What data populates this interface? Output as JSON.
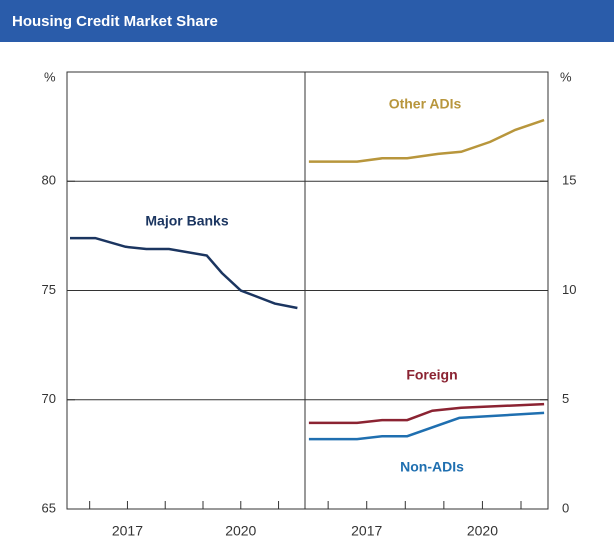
{
  "title": "Housing Credit Market Share",
  "chart_data": [
    {
      "type": "line",
      "y_unit": "%",
      "xlim": [
        2015.4,
        2021.7
      ],
      "xticks": [
        2016,
        2017,
        2018,
        2019,
        2020,
        2021
      ],
      "xtick_labels": [
        2017,
        2020
      ],
      "ylim": [
        65,
        85
      ],
      "yticks": [
        65,
        70,
        75,
        80
      ],
      "grid": true,
      "series": [
        {
          "name": "Major Banks",
          "color": "#1b3560",
          "x": [
            2015.48,
            2016.15,
            2016.95,
            2017.5,
            2018.1,
            2019.1,
            2019.5,
            2020,
            2020.9,
            2021.5
          ],
          "values": [
            77.4,
            77.4,
            77.0,
            76.9,
            76.9,
            76.6,
            75.8,
            75.0,
            74.4,
            74.2
          ]
        }
      ]
    },
    {
      "type": "line",
      "y_unit": "%",
      "xlim": [
        2015.4,
        2021.7
      ],
      "xticks": [
        2016,
        2017,
        2018,
        2019,
        2020,
        2021
      ],
      "xtick_labels": [
        2017,
        2020
      ],
      "ylim": [
        0,
        20
      ],
      "yticks": [
        0,
        5,
        10,
        15
      ],
      "grid": true,
      "series": [
        {
          "name": "Other ADIs",
          "color": "#b8963c",
          "x": [
            2015.5,
            2016.75,
            2017.4,
            2018.05,
            2018.85,
            2019.45,
            2020.2,
            2020.85,
            2021.6
          ],
          "values": [
            15.9,
            15.9,
            16.05,
            16.05,
            16.25,
            16.35,
            16.8,
            17.35,
            17.8
          ]
        },
        {
          "name": "Foreign",
          "color": "#8b2332",
          "x": [
            2015.5,
            2016.75,
            2017.4,
            2018.05,
            2018.7,
            2019.45,
            2021.6
          ],
          "values": [
            3.94,
            3.94,
            4.07,
            4.07,
            4.5,
            4.63,
            4.8
          ]
        },
        {
          "name": "Non-ADIs",
          "color": "#1f6fb0",
          "x": [
            2015.5,
            2016.75,
            2017.4,
            2018.05,
            2019.4,
            2021.6
          ],
          "values": [
            3.2,
            3.2,
            3.33,
            3.33,
            4.17,
            4.4
          ]
        }
      ]
    }
  ]
}
